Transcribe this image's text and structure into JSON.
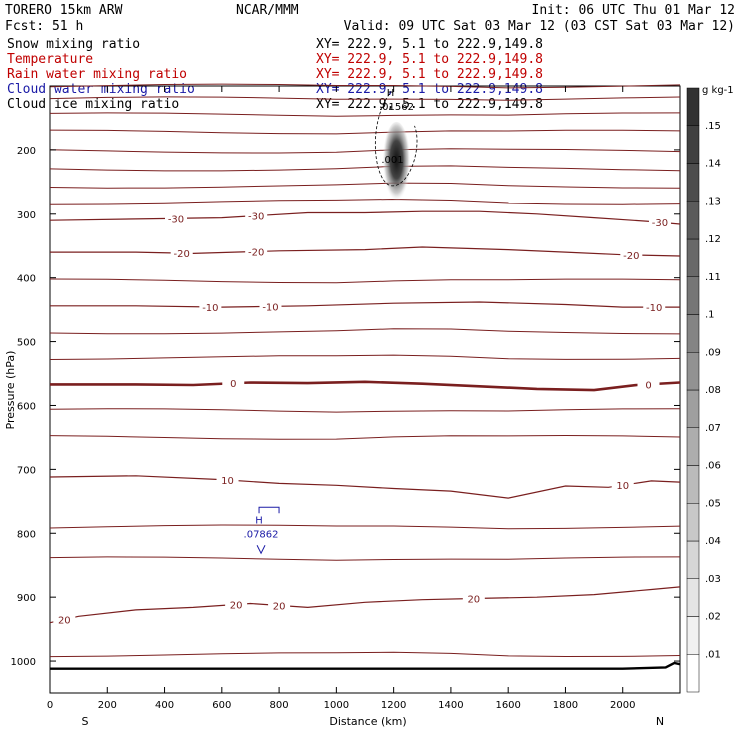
{
  "header": {
    "model": "TORERO  15km ARW",
    "org": "NCAR/MMM",
    "init": "Init: 06 UTC Thu 01 Mar 12",
    "fcst": "Fcst:    51 h",
    "valid": "Valid: 09 UTC Sat 03 Mar 12 (03 CST Sat 03 Mar 12)",
    "fields": [
      {
        "name": "Snow mixing ratio",
        "xy": "XY= 222.9,  5.1 to 222.9,149.8",
        "color": "#000000"
      },
      {
        "name": "Temperature",
        "xy": "XY= 222.9,  5.1 to 222.9,149.8",
        "color": "#c00000"
      },
      {
        "name": "Rain water mixing ratio",
        "xy": "XY= 222.9,  5.1 to 222.9,149.8",
        "color": "#c00000"
      },
      {
        "name": "Cloud water mixing ratio",
        "xy": "XY= 222.9,  5.1 to 222.9,149.8",
        "color": "#1a1aa6"
      },
      {
        "name": "Cloud ice mixing ratio",
        "xy": "XY= 222.9,  5.1 to 222.9,149.8",
        "color": "#000000"
      }
    ]
  },
  "colors": {
    "isotherm": "#7a1f1f",
    "cloud_water": "#1a1aa6",
    "snow_shade": "#333333"
  },
  "chart_data": {
    "type": "cross-section",
    "title": "Snow mixing ratio / Temperature / Rain water / Cloud water / Cloud ice mixing ratio",
    "xlabel": "Distance (km)",
    "ylabel": "Pressure (hPa)",
    "xlim": [
      0,
      2200
    ],
    "ylim": [
      1050,
      100
    ],
    "xticks": [
      0,
      200,
      400,
      600,
      800,
      1000,
      1200,
      1400,
      1600,
      1800,
      2000
    ],
    "yticks": [
      200,
      300,
      400,
      500,
      600,
      700,
      800,
      900,
      1000
    ],
    "end_labels": {
      "left": "S",
      "right": "N"
    },
    "isotherms": [
      {
        "level": -30,
        "labels": [
          "-30",
          "-30",
          "-30"
        ],
        "label_x": [
          440,
          720,
          2130
        ],
        "points": [
          [
            0,
            310
          ],
          [
            300,
            308
          ],
          [
            600,
            306
          ],
          [
            900,
            298
          ],
          [
            1100,
            298
          ],
          [
            1300,
            296
          ],
          [
            1500,
            296
          ],
          [
            1700,
            300
          ],
          [
            1900,
            306
          ],
          [
            2100,
            312
          ],
          [
            2200,
            316
          ]
        ]
      },
      {
        "level": -20,
        "labels": [
          "-20",
          "-20",
          "-20"
        ],
        "label_x": [
          460,
          720,
          2030
        ],
        "points": [
          [
            0,
            360
          ],
          [
            300,
            360
          ],
          [
            500,
            362
          ],
          [
            800,
            358
          ],
          [
            1100,
            356
          ],
          [
            1300,
            352
          ],
          [
            1600,
            356
          ],
          [
            1800,
            360
          ],
          [
            2000,
            364
          ],
          [
            2200,
            366
          ]
        ]
      },
      {
        "level": -10,
        "labels": [
          "-10",
          "-10",
          "-10"
        ],
        "label_x": [
          560,
          770,
          2110
        ],
        "points": [
          [
            0,
            444
          ],
          [
            300,
            444
          ],
          [
            600,
            446
          ],
          [
            900,
            444
          ],
          [
            1200,
            440
          ],
          [
            1500,
            438
          ],
          [
            1800,
            442
          ],
          [
            2000,
            446
          ],
          [
            2200,
            446
          ]
        ]
      },
      {
        "level": 0,
        "labels": [
          "0",
          "0"
        ],
        "label_x": [
          640,
          2090
        ],
        "points": [
          [
            0,
            567
          ],
          [
            300,
            567
          ],
          [
            500,
            568
          ],
          [
            700,
            564
          ],
          [
            900,
            565
          ],
          [
            1100,
            563
          ],
          [
            1300,
            566
          ],
          [
            1500,
            570
          ],
          [
            1700,
            574
          ],
          [
            1900,
            576
          ],
          [
            2050,
            568
          ],
          [
            2200,
            564
          ]
        ]
      },
      {
        "level": 10,
        "labels": [
          "10",
          "10"
        ],
        "label_x": [
          620,
          2000
        ],
        "points": [
          [
            0,
            712
          ],
          [
            300,
            710
          ],
          [
            600,
            716
          ],
          [
            800,
            722
          ],
          [
            1000,
            725
          ],
          [
            1200,
            730
          ],
          [
            1400,
            734
          ],
          [
            1600,
            745
          ],
          [
            1800,
            726
          ],
          [
            1950,
            728
          ],
          [
            2100,
            718
          ],
          [
            2200,
            720
          ]
        ]
      },
      {
        "level": 20,
        "labels": [
          "20",
          "20",
          "20",
          "20"
        ],
        "label_x": [
          50,
          650,
          800,
          1480
        ],
        "points": [
          [
            0,
            940
          ],
          [
            100,
            930
          ],
          [
            300,
            920
          ],
          [
            500,
            916
          ],
          [
            700,
            910
          ],
          [
            900,
            916
          ],
          [
            1100,
            908
          ],
          [
            1300,
            904
          ],
          [
            1500,
            902
          ],
          [
            1700,
            900
          ],
          [
            1900,
            896
          ],
          [
            2100,
            888
          ],
          [
            2200,
            884
          ]
        ]
      }
    ],
    "unlabeled_isotherm_pressures": [
      100,
      120,
      145,
      172,
      202,
      230,
      257,
      282,
      405,
      485,
      525,
      608,
      650,
      790,
      840,
      990
    ],
    "surface_line": {
      "points": [
        [
          0,
          1012
        ],
        [
          500,
          1012
        ],
        [
          1000,
          1012
        ],
        [
          1500,
          1012
        ],
        [
          2000,
          1012
        ],
        [
          2150,
          1010
        ],
        [
          2180,
          1003
        ],
        [
          2200,
          1005
        ]
      ]
    },
    "snow_maximum": {
      "label": "H",
      "value": ".01562",
      "x": 1210,
      "p": 225,
      "contour_label": ".001"
    },
    "cloud_water_maximum": {
      "label": "H",
      "value": ".07862",
      "x": 730,
      "p": 800
    },
    "colorbar": {
      "units": "g kg-1",
      "ticks": [
        ".01",
        ".02",
        ".03",
        ".04",
        ".05",
        ".06",
        ".07",
        ".08",
        ".09",
        ".1",
        ".11",
        ".12",
        ".13",
        ".14",
        ".15"
      ]
    }
  }
}
